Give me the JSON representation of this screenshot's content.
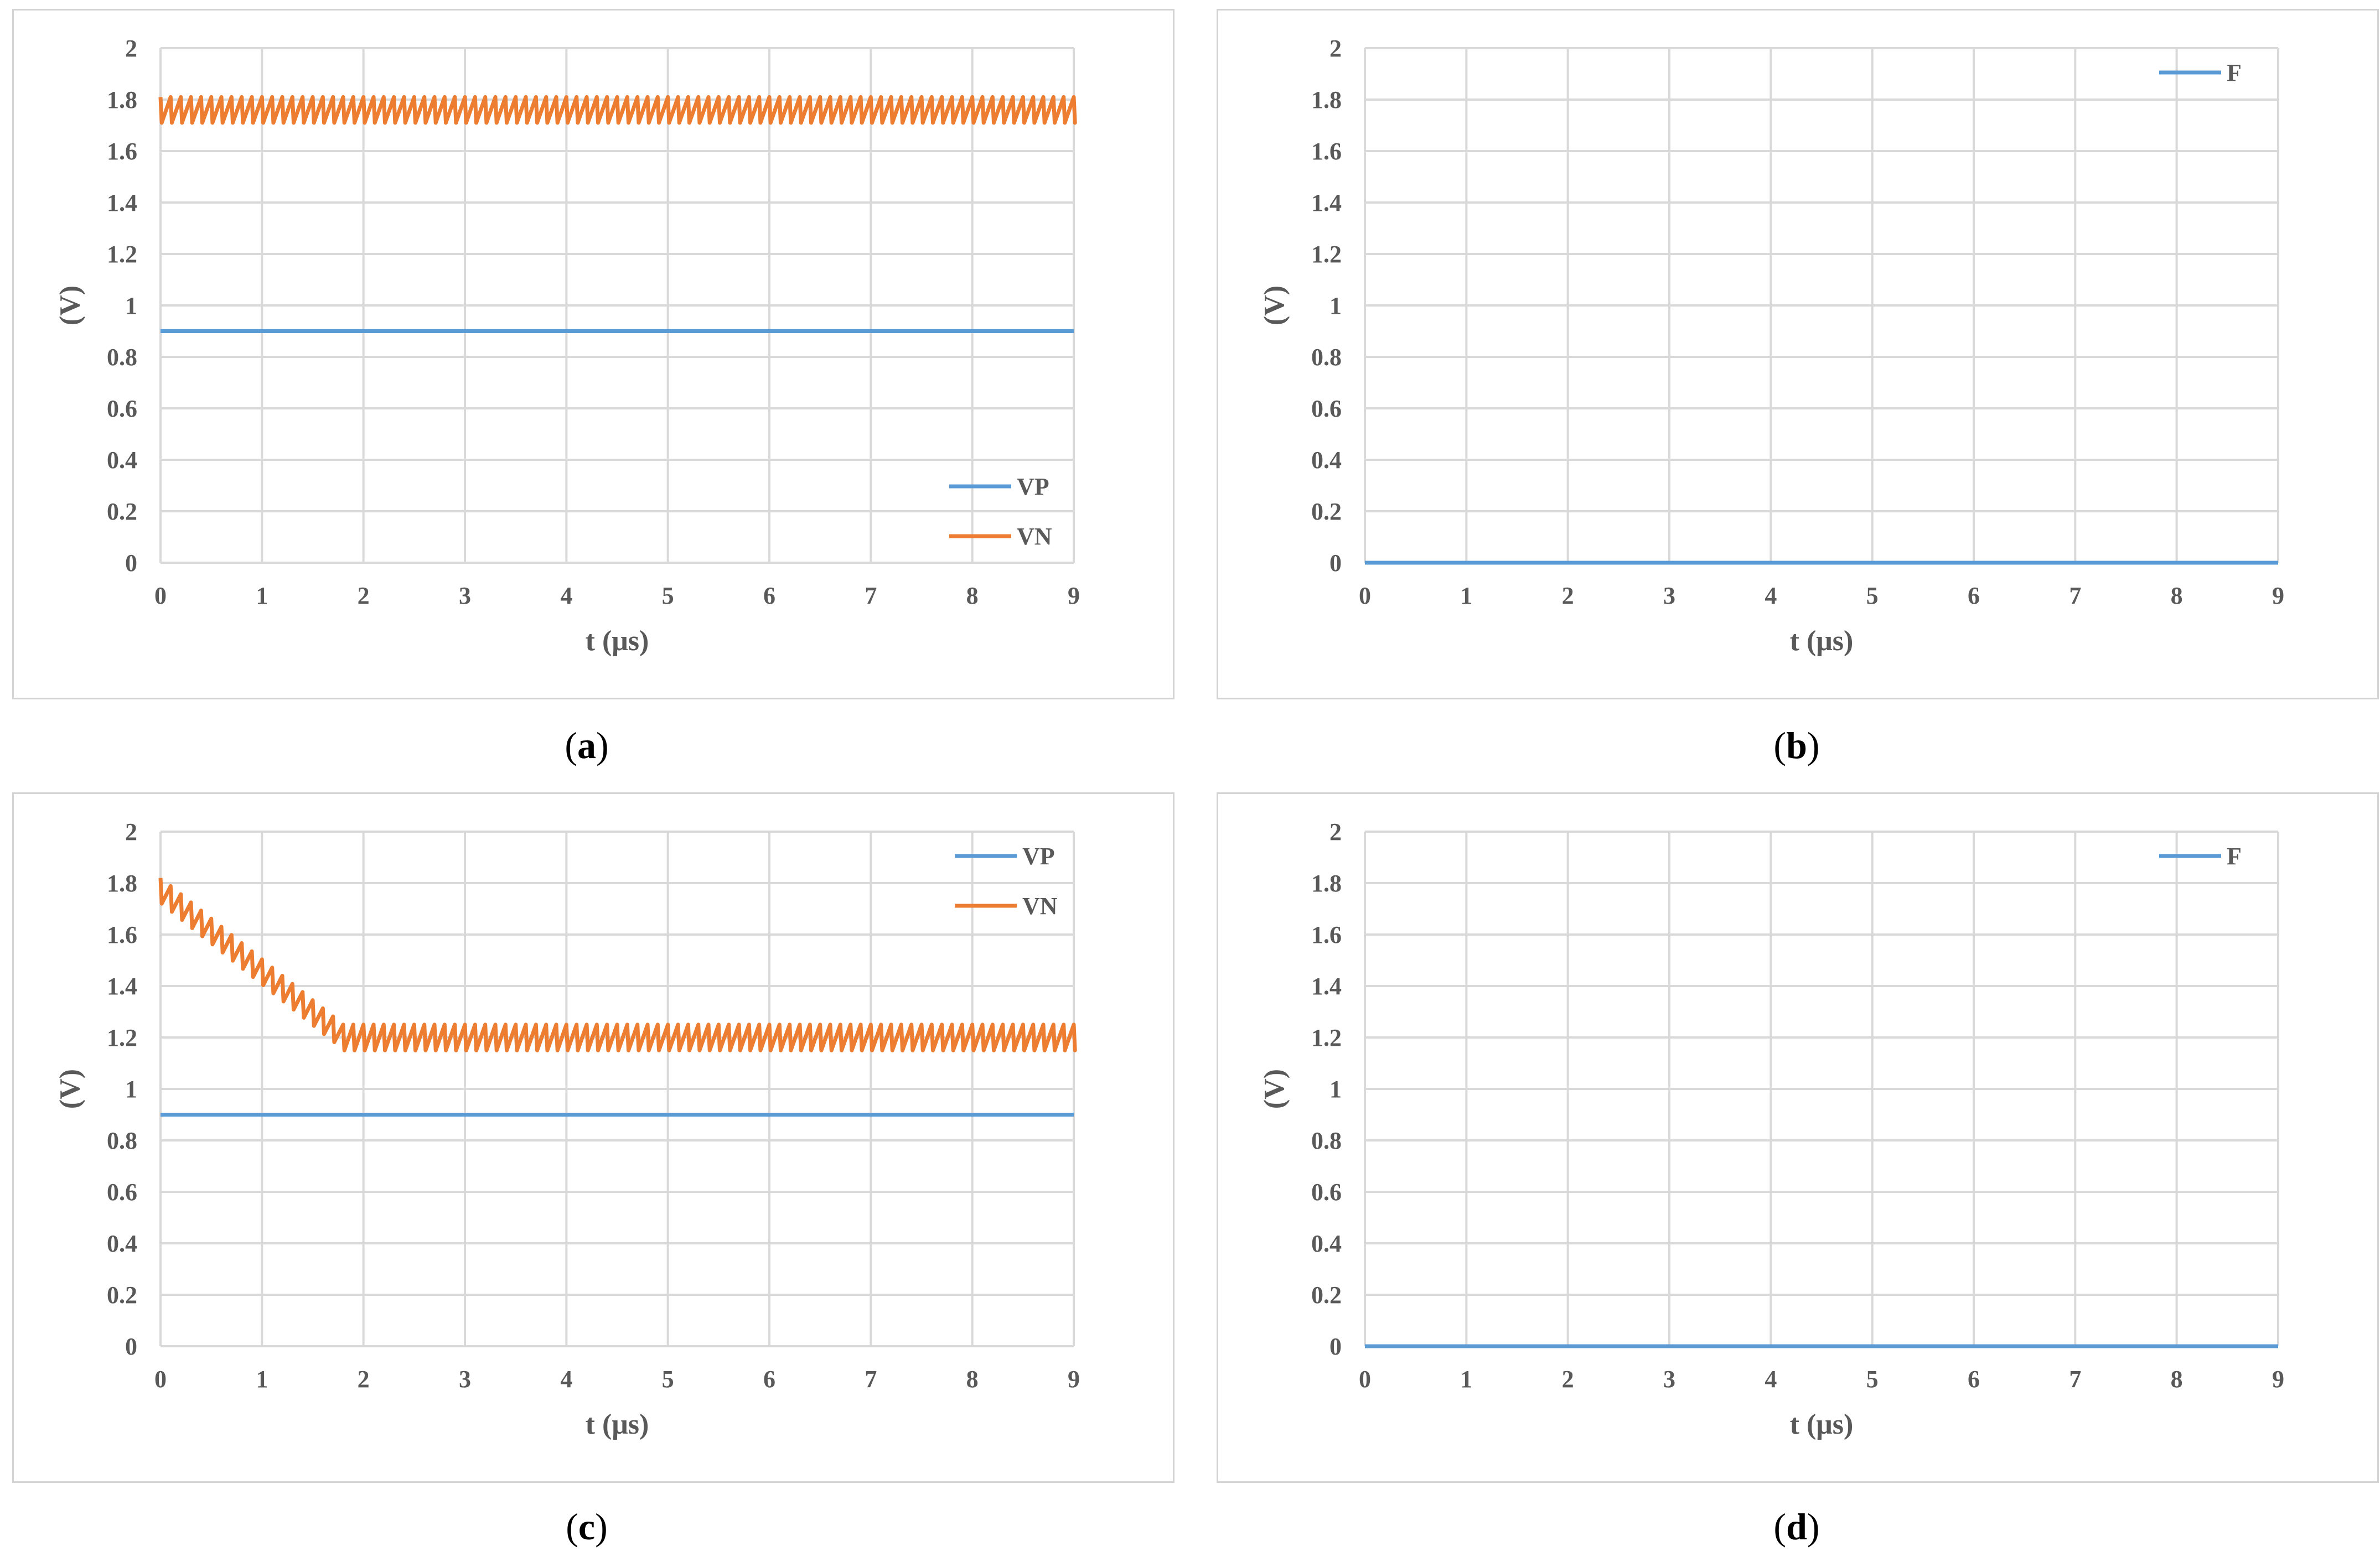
{
  "colors": {
    "VP": "#5b9bd5",
    "VN": "#ed7d31",
    "F": "#5b9bd5",
    "grid": "#d9d9d9",
    "text": "#595959"
  },
  "captions": {
    "a": "a",
    "b": "b",
    "c": "c",
    "d": "d"
  },
  "chart_data": [
    {
      "id": "a",
      "type": "line",
      "xlabel": "t (μs)",
      "ylabel": "(V)",
      "xlim": [
        0,
        9
      ],
      "ylim": [
        0,
        2
      ],
      "xticks": [
        "0",
        "1",
        "2",
        "3",
        "4",
        "5",
        "6",
        "7",
        "8",
        "9"
      ],
      "yticks": [
        "0",
        "0.2",
        "0.4",
        "0.6",
        "0.8",
        "1",
        "1.2",
        "1.4",
        "1.6",
        "1.8",
        "2"
      ],
      "grid": true,
      "legend_position": "bottom-right",
      "series": [
        {
          "name": "VP",
          "x": [
            0,
            9
          ],
          "values": [
            0.9,
            0.9
          ]
        },
        {
          "name": "VN",
          "x": [
            0,
            9
          ],
          "values": [
            1.8,
            1.8
          ],
          "ripple_high": 1.81,
          "ripple_low": 1.71,
          "ripple_period": 0.1
        }
      ]
    },
    {
      "id": "b",
      "type": "line",
      "xlabel": "t (μs)",
      "ylabel": "(V)",
      "xlim": [
        0,
        9
      ],
      "ylim": [
        0,
        2
      ],
      "xticks": [
        "0",
        "1",
        "2",
        "3",
        "4",
        "5",
        "6",
        "7",
        "8",
        "9"
      ],
      "yticks": [
        "0",
        "0.2",
        "0.4",
        "0.6",
        "0.8",
        "1",
        "1.2",
        "1.4",
        "1.6",
        "1.8",
        "2"
      ],
      "grid": true,
      "legend_position": "top-right",
      "series": [
        {
          "name": "F",
          "x": [
            0,
            9
          ],
          "values": [
            0,
            0
          ]
        }
      ]
    },
    {
      "id": "c",
      "type": "line",
      "xlabel": "t (μs)",
      "ylabel": "(V)",
      "xlim": [
        0,
        9
      ],
      "ylim": [
        0,
        2
      ],
      "xticks": [
        "0",
        "1",
        "2",
        "3",
        "4",
        "5",
        "6",
        "7",
        "8",
        "9"
      ],
      "yticks": [
        "0",
        "0.2",
        "0.4",
        "0.6",
        "0.8",
        "1",
        "1.2",
        "1.4",
        "1.6",
        "1.8",
        "2"
      ],
      "grid": true,
      "legend_position": "top-right",
      "series": [
        {
          "name": "VP",
          "x": [
            0,
            9
          ],
          "values": [
            0.9,
            0.9
          ]
        },
        {
          "name": "VN",
          "x": [
            0,
            1.8,
            9
          ],
          "values": [
            1.8,
            1.23,
            1.23
          ],
          "ripple_high": 0.02,
          "ripple_low": -0.08,
          "ripple_period": 0.1
        }
      ]
    },
    {
      "id": "d",
      "type": "line",
      "xlabel": "t (μs)",
      "ylabel": "(V)",
      "xlim": [
        0,
        9
      ],
      "ylim": [
        0,
        2
      ],
      "xticks": [
        "0",
        "1",
        "2",
        "3",
        "4",
        "5",
        "6",
        "7",
        "8",
        "9"
      ],
      "yticks": [
        "0",
        "0.2",
        "0.4",
        "0.6",
        "0.8",
        "1",
        "1.2",
        "1.4",
        "1.6",
        "1.8",
        "2"
      ],
      "grid": true,
      "legend_position": "top-right",
      "series": [
        {
          "name": "F",
          "x": [
            0,
            9
          ],
          "values": [
            0,
            0
          ]
        }
      ]
    }
  ]
}
